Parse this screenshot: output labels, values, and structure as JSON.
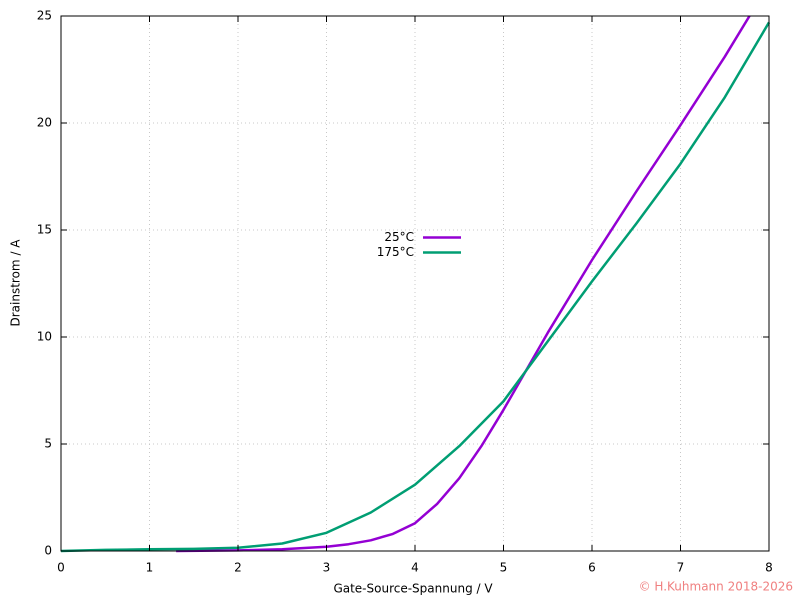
{
  "chart_data": {
    "type": "line",
    "xlabel": "Gate-Source-Spannung / V",
    "ylabel": "Drainstrom / A",
    "annotation": "© H.Kuhmann 2018-2026",
    "xlim": [
      0,
      8
    ],
    "xticks": [
      0,
      1,
      2,
      3,
      4,
      5,
      6,
      7,
      8
    ],
    "ylim": [
      0,
      25
    ],
    "yticks": [
      0,
      5,
      10,
      15,
      20,
      25
    ],
    "grid": true,
    "legend": "center",
    "series": [
      {
        "name": "25°C",
        "color": "#9400d3",
        "x": [
          1.3,
          2,
          2.5,
          3,
          3.25,
          3.5,
          3.75,
          4,
          4.25,
          4.5,
          4.75,
          5,
          5.5,
          6,
          6.5,
          7,
          7.5,
          7.78
        ],
        "values": [
          0,
          0.03,
          0.08,
          0.2,
          0.32,
          0.5,
          0.8,
          1.3,
          2.2,
          3.4,
          4.9,
          6.6,
          10.2,
          13.6,
          16.8,
          19.9,
          23.1,
          25
        ]
      },
      {
        "name": "175°C",
        "color": "#009e73",
        "x": [
          0,
          0.5,
          1,
          1.5,
          2,
          2.5,
          3,
          3.5,
          4,
          4.5,
          5,
          5.5,
          6,
          6.5,
          7,
          7.5,
          8
        ],
        "values": [
          0,
          0.05,
          0.08,
          0.1,
          0.15,
          0.35,
          0.85,
          1.8,
          3.1,
          4.9,
          7.0,
          9.8,
          12.6,
          15.3,
          18.1,
          21.2,
          24.7
        ]
      }
    ]
  }
}
